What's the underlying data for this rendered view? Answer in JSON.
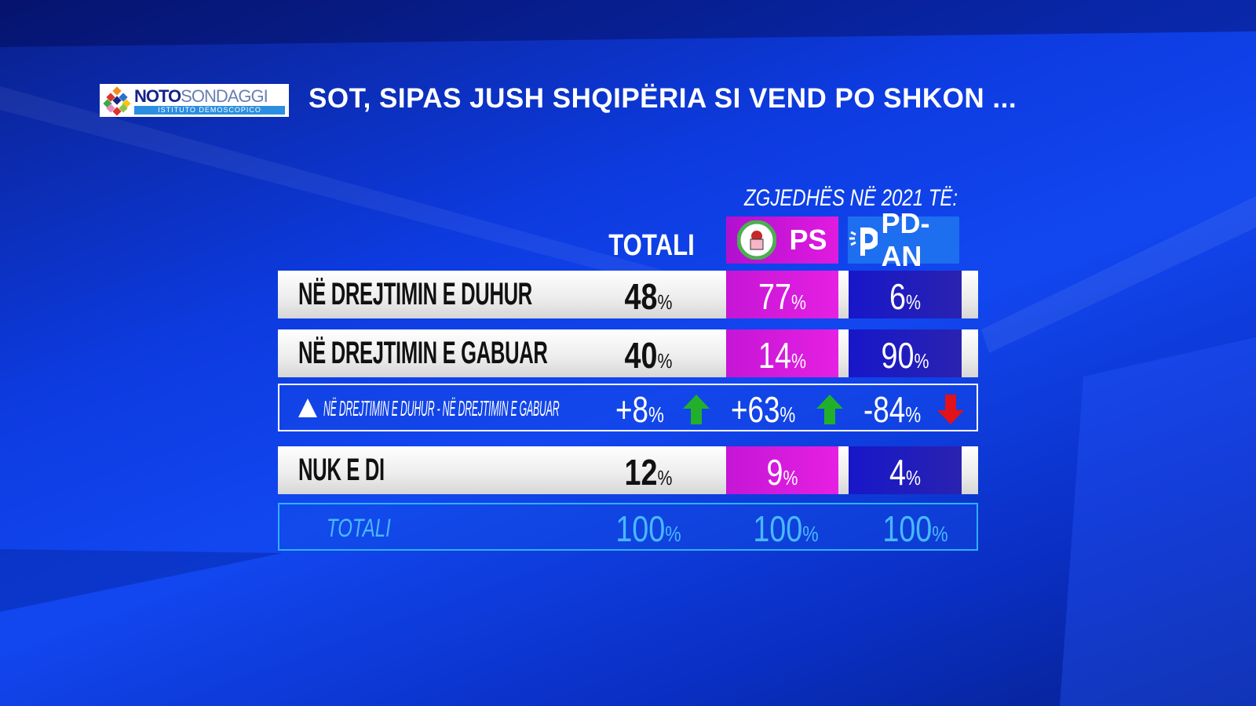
{
  "logo": {
    "name_bold": "NOTO",
    "name_light": "SONDAGGI",
    "subtitle": "ISTITUTO DEMOSCOPICO"
  },
  "title": "SOT, SIPAS JUSH SHQIPËRIA SI VEND PO SHKON ...",
  "voters_label": "ZGJEDHËS NË 2021 TË:",
  "columns": {
    "total": "TOTALI",
    "ps": "PS",
    "pd": "PD-AN"
  },
  "colors": {
    "ps": "#e01ce0",
    "pd": "#1a1acb",
    "up": "#22b02a",
    "down": "#e0121a",
    "total_row": "#48b8ff"
  },
  "percent": "%",
  "rows": [
    {
      "label": "NË DREJTIMIN E DUHUR",
      "total": "48",
      "ps": "77",
      "pd": "6"
    },
    {
      "label": "NË DREJTIMIN E GABUAR",
      "total": "40",
      "ps": "14",
      "pd": "90"
    },
    {
      "label": "NUK E DI",
      "total": "12",
      "ps": "9",
      "pd": "4"
    }
  ],
  "delta": {
    "label": "NË DREJTIMIN E DUHUR - NË DREJTIMIN E GABUAR",
    "total": "+8",
    "ps": "+63",
    "pd": "-84",
    "total_dir": "up",
    "ps_dir": "up",
    "pd_dir": "down"
  },
  "totals": {
    "label": "TOTALI",
    "total": "100",
    "ps": "100",
    "pd": "100"
  }
}
